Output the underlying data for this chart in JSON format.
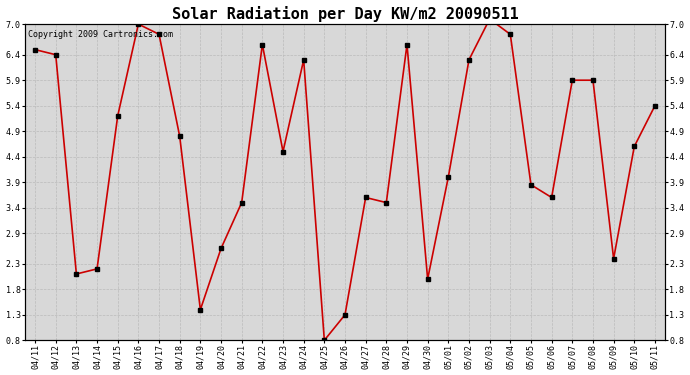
{
  "title": "Solar Radiation per Day KW/m2 20090511",
  "copyright": "Copyright 2009 Cartronics.com",
  "dates": [
    "04/11",
    "04/12",
    "04/13",
    "04/14",
    "04/15",
    "04/16",
    "04/17",
    "04/18",
    "04/19",
    "04/20",
    "04/21",
    "04/22",
    "04/23",
    "04/24",
    "04/25",
    "04/26",
    "04/27",
    "04/28",
    "04/29",
    "04/30",
    "05/01",
    "05/02",
    "05/03",
    "05/04",
    "05/05",
    "05/06",
    "05/07",
    "05/08",
    "05/09",
    "05/10",
    "05/11"
  ],
  "values": [
    6.5,
    6.4,
    2.1,
    2.2,
    5.2,
    7.0,
    6.8,
    4.8,
    1.4,
    2.6,
    3.5,
    6.6,
    4.5,
    6.3,
    0.8,
    1.3,
    3.6,
    3.5,
    6.6,
    2.0,
    4.0,
    6.3,
    7.1,
    6.8,
    3.85,
    3.6,
    5.9,
    5.9,
    2.4,
    4.6,
    5.4
  ],
  "line_color": "#cc0000",
  "marker_size": 2.5,
  "marker_color": "#000000",
  "ylim_min": 0.8,
  "ylim_max": 7.0,
  "yticks": [
    0.8,
    1.3,
    1.8,
    2.3,
    2.9,
    3.4,
    3.9,
    4.4,
    4.9,
    5.4,
    5.9,
    6.4,
    7.0
  ],
  "bg_color": "#ffffff",
  "plot_bg_color": "#d8d8d8",
  "grid_color": "#bbbbbb",
  "title_fontsize": 11,
  "tick_fontsize": 6,
  "copyright_fontsize": 6
}
